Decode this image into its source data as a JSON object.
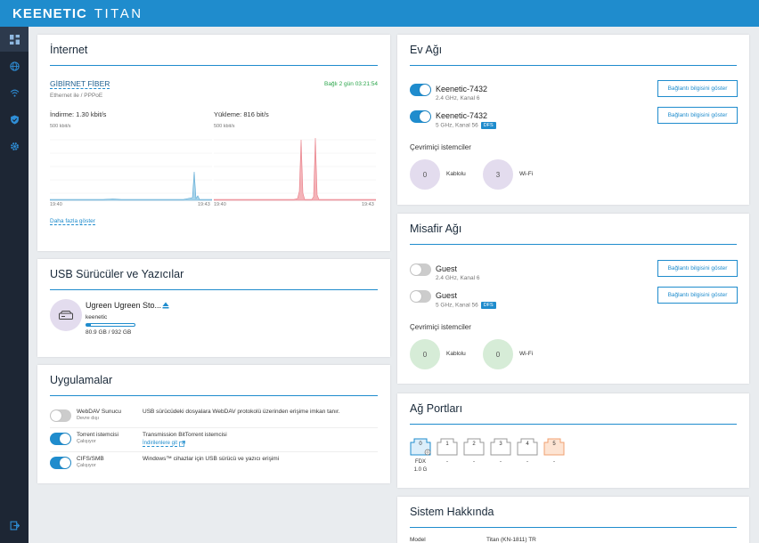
{
  "brand": {
    "name": "KEENETIC",
    "model": "TITAN"
  },
  "sidebar": {
    "items": [
      {
        "name": "dashboard",
        "icon": "grid-icon"
      },
      {
        "name": "internet",
        "icon": "globe-icon"
      },
      {
        "name": "wifi",
        "icon": "wifi-icon"
      },
      {
        "name": "security",
        "icon": "shield-icon"
      },
      {
        "name": "settings",
        "icon": "gear-icon"
      },
      {
        "name": "logout",
        "icon": "logout-icon"
      }
    ]
  },
  "internet": {
    "title": "İnternet",
    "connection_name": "GİBİRNET FİBER",
    "connection_type": "Ethernet ile / PPPoE",
    "status": "Bağlı 2 gün 03:21:54",
    "download_label": "İndirme: 1.30 kbit/s",
    "upload_label": "Yükleme: 816 bit/s",
    "download_scale": "500 kbit/s",
    "upload_scale": "500 kbit/s",
    "download_start": "19:40",
    "download_end": "19:43",
    "upload_start": "19:40",
    "upload_end": "19:43",
    "more_link": "Daha fazla göster"
  },
  "usb": {
    "title": "USB Sürücüler ve Yazıcılar",
    "device_name": "Ugreen Ugreen Sto...",
    "label": "keenetic",
    "usage": "80.9 GB / 932 GB",
    "used_fraction": 0.087
  },
  "apps": {
    "title": "Uygulamalar",
    "items": [
      {
        "name": "WebDAV Sunucu",
        "state": "Devre dışı",
        "on": false,
        "desc": "USB sürücüdeki dosyalara WebDAV protokolü üzerinden erişime imkan tanır.",
        "link": ""
      },
      {
        "name": "Torrent istemcisi",
        "state": "Çalışıyor",
        "on": true,
        "desc": "Transmission BitTorrent istemcisi",
        "link": "İndirilenlere git"
      },
      {
        "name": "CIFS/SMB",
        "state": "Çalışıyor",
        "on": true,
        "desc": "Windows™ cihazlar için USB sürücü ve yazıcı erişimi",
        "link": ""
      }
    ]
  },
  "home": {
    "title": "Ev Ağı",
    "networks": [
      {
        "ssid": "Keenetic-7432",
        "info": "2.4 GHz, Kanal 6",
        "dfs": "",
        "on": true,
        "button": "Bağlantı bilgisini göster"
      },
      {
        "ssid": "Keenetic-7432",
        "info": "5 GHz, Kanal 56",
        "dfs": "DFS",
        "on": true,
        "button": "Bağlantı bilgisini göster"
      }
    ],
    "clients_title": "Çevrimiçi istemciler",
    "wired_count": "0",
    "wired_label": "Kablolu",
    "wifi_count": "3",
    "wifi_label": "Wi-Fi"
  },
  "guest": {
    "title": "Misafir Ağı",
    "networks": [
      {
        "ssid": "Guest",
        "info": "2.4 GHz, Kanal 6",
        "dfs": "",
        "on": false,
        "button": "Bağlantı bilgisini göster"
      },
      {
        "ssid": "Guest",
        "info": "5 GHz, Kanal 56",
        "dfs": "DFS",
        "on": false,
        "button": "Bağlantı bilgisini göster"
      }
    ],
    "clients_title": "Çevrimiçi istemciler",
    "wired_count": "0",
    "wired_label": "Kablolu",
    "wifi_count": "0",
    "wifi_label": "Wi-Fi"
  },
  "ports": {
    "title": "Ağ Portları",
    "items": [
      {
        "label": "0",
        "status": "FDX",
        "speed": "1.0 G",
        "active": true
      },
      {
        "label": "1",
        "status": "-",
        "speed": ""
      },
      {
        "label": "2",
        "status": "-",
        "speed": ""
      },
      {
        "label": "3",
        "status": "-",
        "speed": ""
      },
      {
        "label": "4",
        "status": "-",
        "speed": ""
      },
      {
        "label": "5",
        "status": "-",
        "speed": "",
        "wan": true
      }
    ]
  },
  "system": {
    "title": "Sistem Hakkında",
    "model_label": "Model",
    "model_value": "Titan (KN-1811) TR"
  },
  "colors": {
    "accent": "#1f8ccd",
    "download": "#a8d4ea",
    "upload": "#f4b3b8"
  }
}
